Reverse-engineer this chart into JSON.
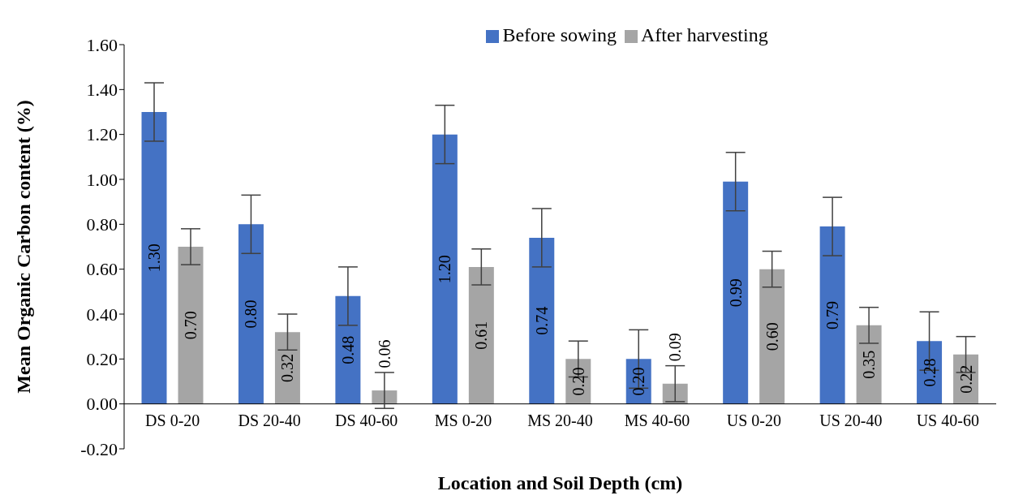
{
  "chart_data": {
    "type": "bar",
    "xlabel": "Location and Soil Depth (cm)",
    "ylabel": "Mean Organic Carbon content (%)",
    "categories": [
      "DS 0-20",
      "DS 20-40",
      "DS 40-60",
      "MS 0-20",
      "MS 20-40",
      "MS 40-60",
      "US 0-20",
      "US 20-40",
      "US 40-60"
    ],
    "series": [
      {
        "name": "Before sowing",
        "color": "#4472c4",
        "values": [
          1.3,
          0.8,
          0.48,
          1.2,
          0.74,
          0.2,
          0.99,
          0.79,
          0.28
        ],
        "value_labels": [
          "1.30",
          "0.80",
          "0.48",
          "1.20",
          "0.74",
          "0.20",
          "0.99",
          "0.79",
          "0.28"
        ],
        "errors": [
          0.13,
          0.13,
          0.13,
          0.13,
          0.13,
          0.13,
          0.13,
          0.13,
          0.13
        ]
      },
      {
        "name": "After harvesting",
        "color": "#a5a5a5",
        "values": [
          0.7,
          0.32,
          0.06,
          0.61,
          0.2,
          0.09,
          0.6,
          0.35,
          0.22
        ],
        "value_labels": [
          "0.70",
          "0.32",
          "0.06",
          "0.61",
          "0.20",
          "0.09",
          "0.60",
          "0.35",
          "0.22"
        ],
        "errors": [
          0.08,
          0.08,
          0.08,
          0.08,
          0.08,
          0.08,
          0.08,
          0.08,
          0.08
        ]
      }
    ],
    "ylim": [
      -0.2,
      1.6
    ],
    "yticks": [
      {
        "value": -0.2,
        "label": "-0.20"
      },
      {
        "value": 0,
        "label": "0.00"
      },
      {
        "value": 0.2,
        "label": "0.20"
      },
      {
        "value": 0.4,
        "label": "0.40"
      },
      {
        "value": 0.6,
        "label": "0.60"
      },
      {
        "value": 0.8,
        "label": "0.80"
      },
      {
        "value": 1.0,
        "label": "1.00"
      },
      {
        "value": 1.2,
        "label": "1.20"
      },
      {
        "value": 1.4,
        "label": "1.40"
      },
      {
        "value": 1.6,
        "label": "1.60"
      }
    ],
    "grid": false,
    "legend": "top"
  }
}
